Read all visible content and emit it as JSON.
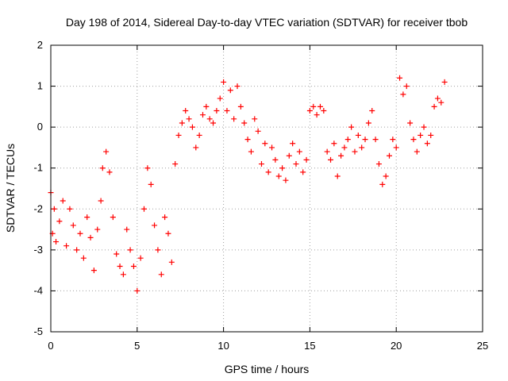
{
  "chart_data": {
    "type": "scatter",
    "title": "Day 198 of 2014, Sidereal Day-to-day VTEC variation (SDTVAR) for receiver tbob",
    "xlabel": "GPS time / hours",
    "ylabel": "SDTVAR / TECUs",
    "xlim": [
      0,
      25
    ],
    "ylim": [
      -5,
      2
    ],
    "xticks": [
      0,
      5,
      10,
      15,
      20,
      25
    ],
    "yticks": [
      -5,
      -4,
      -3,
      -2,
      -1,
      0,
      1,
      2
    ],
    "xtick_labels": [
      "0",
      "5",
      "10",
      "15",
      "20",
      "25"
    ],
    "ytick_labels": [
      "-5",
      "-4",
      "-3",
      "-2",
      "-1",
      "0",
      "1",
      "2"
    ],
    "grid": true,
    "marker": "+",
    "series": [
      {
        "name": "SDTVAR",
        "color": "#ff0000",
        "x": [
          0.0,
          0.1,
          0.2,
          0.3,
          0.5,
          0.7,
          0.9,
          1.1,
          1.3,
          1.5,
          1.7,
          1.9,
          2.1,
          2.3,
          2.5,
          2.7,
          2.9,
          3.0,
          3.2,
          3.4,
          3.6,
          3.8,
          4.0,
          4.2,
          4.4,
          4.6,
          4.8,
          5.0,
          5.2,
          5.4,
          5.6,
          5.8,
          6.0,
          6.2,
          6.4,
          6.6,
          6.8,
          7.0,
          7.2,
          7.4,
          7.6,
          7.8,
          8.0,
          8.2,
          8.4,
          8.6,
          8.8,
          9.0,
          9.2,
          9.4,
          9.6,
          9.8,
          10.0,
          10.2,
          10.4,
          10.6,
          10.8,
          11.0,
          11.2,
          11.4,
          11.6,
          11.8,
          12.0,
          12.2,
          12.4,
          12.6,
          12.8,
          13.0,
          13.2,
          13.4,
          13.6,
          13.8,
          14.0,
          14.2,
          14.4,
          14.6,
          14.8,
          15.0,
          15.2,
          15.4,
          15.6,
          15.8,
          16.0,
          16.2,
          16.4,
          16.6,
          16.8,
          17.0,
          17.2,
          17.4,
          17.6,
          17.8,
          18.0,
          18.2,
          18.4,
          18.6,
          18.8,
          19.0,
          19.2,
          19.4,
          19.6,
          19.8,
          20.0,
          20.2,
          20.4,
          20.6,
          20.8,
          21.0,
          21.2,
          21.4,
          21.6,
          21.8,
          22.0,
          22.2,
          22.4,
          22.6,
          22.8
        ],
        "y": [
          -1.6,
          -2.6,
          -2.0,
          -2.8,
          -2.3,
          -1.8,
          -2.9,
          -2.0,
          -2.4,
          -3.0,
          -2.6,
          -3.2,
          -2.2,
          -2.7,
          -3.5,
          -2.5,
          -1.8,
          -1.0,
          -0.6,
          -1.1,
          -2.2,
          -3.1,
          -3.4,
          -3.6,
          -2.5,
          -3.0,
          -3.4,
          -4.0,
          -3.2,
          -2.0,
          -1.0,
          -1.4,
          -2.4,
          -3.0,
          -3.6,
          -2.2,
          -2.6,
          -3.3,
          -0.9,
          -0.2,
          0.1,
          0.4,
          0.2,
          0.0,
          -0.5,
          -0.2,
          0.3,
          0.5,
          0.2,
          0.1,
          0.4,
          0.7,
          1.1,
          0.4,
          0.9,
          0.2,
          1.0,
          0.5,
          0.1,
          -0.3,
          -0.6,
          0.2,
          -0.1,
          -0.9,
          -0.4,
          -1.1,
          -0.5,
          -0.8,
          -1.2,
          -1.0,
          -1.3,
          -0.7,
          -0.4,
          -0.9,
          -0.6,
          -1.1,
          -0.8,
          0.4,
          0.5,
          0.3,
          0.5,
          0.4,
          -0.6,
          -0.8,
          -0.4,
          -1.2,
          -0.7,
          -0.5,
          -0.3,
          0.0,
          -0.6,
          -0.2,
          -0.5,
          -0.3,
          0.1,
          0.4,
          -0.3,
          -0.9,
          -1.4,
          -1.2,
          -0.7,
          -0.3,
          -0.5,
          1.2,
          0.8,
          1.0,
          0.1,
          -0.3,
          -0.6,
          -0.2,
          0.0,
          -0.4,
          -0.2,
          0.5,
          0.7,
          0.6,
          1.1
        ]
      }
    ]
  }
}
